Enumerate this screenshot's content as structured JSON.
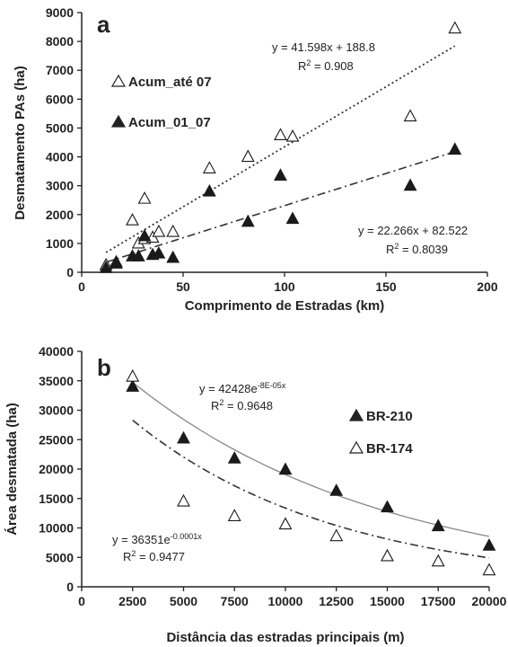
{
  "chart_data": [
    {
      "type": "scatter",
      "panel_label": "a",
      "xlabel": "Comprimento de Estradas (km)",
      "ylabel": "Desmatamento PAs (ha)",
      "xlim": [
        0,
        200
      ],
      "ylim": [
        0,
        9000
      ],
      "xticks": [
        0,
        50,
        100,
        150,
        200
      ],
      "yticks": [
        0,
        1000,
        2000,
        3000,
        4000,
        5000,
        6000,
        7000,
        8000,
        9000
      ],
      "grid": false,
      "legend_position": "left",
      "series": [
        {
          "name": "Acum_até 07",
          "marker": "open-triangle",
          "points": [
            [
              12,
              250
            ],
            [
              17,
              350
            ],
            [
              25,
              1800
            ],
            [
              28,
              1000
            ],
            [
              31,
              2550
            ],
            [
              31,
              1150
            ],
            [
              35,
              1200
            ],
            [
              38,
              1400
            ],
            [
              45,
              1400
            ],
            [
              63,
              3600
            ],
            [
              82,
              4000
            ],
            [
              98,
              4750
            ],
            [
              104,
              4700
            ],
            [
              162,
              5400
            ],
            [
              184,
              8450
            ]
          ],
          "trendline": {
            "kind": "linear",
            "slope": 41.598,
            "intercept": 188.8,
            "style": "dotted",
            "x_range": [
              12,
              184
            ]
          },
          "equation": "y = 41.598x + 188.8",
          "r2_prefix": "R",
          "r2_value": " = 0.908"
        },
        {
          "name": "Acum_01_07",
          "marker": "filled-triangle",
          "points": [
            [
              12,
              150
            ],
            [
              17,
              300
            ],
            [
              25,
              550
            ],
            [
              28,
              550
            ],
            [
              31,
              1250
            ],
            [
              35,
              600
            ],
            [
              38,
              650
            ],
            [
              45,
              500
            ],
            [
              63,
              2800
            ],
            [
              82,
              1750
            ],
            [
              98,
              3350
            ],
            [
              104,
              1850
            ],
            [
              162,
              3000
            ],
            [
              184,
              4250
            ]
          ],
          "trendline": {
            "kind": "linear",
            "slope": 22.266,
            "intercept": 82.522,
            "style": "dash-dot",
            "x_range": [
              12,
              184
            ]
          },
          "equation": "y = 22.266x + 82.522",
          "r2_prefix": "R",
          "r2_value": " = 0.8039"
        }
      ]
    },
    {
      "type": "scatter",
      "panel_label": "b",
      "xlabel": "Distância das estradas principais (m)",
      "ylabel": "Área desmatada (ha)",
      "xlim": [
        0,
        20000
      ],
      "ylim": [
        0,
        40000
      ],
      "xticks": [
        0,
        2500,
        5000,
        7500,
        10000,
        12500,
        15000,
        17500,
        20000
      ],
      "yticks": [
        0,
        5000,
        10000,
        15000,
        20000,
        25000,
        30000,
        35000,
        40000
      ],
      "grid": false,
      "legend_position": "right",
      "series": [
        {
          "name": "BR-210",
          "marker": "filled-triangle",
          "points": [
            [
              2500,
              34000
            ],
            [
              5000,
              25200
            ],
            [
              7500,
              21800
            ],
            [
              10000,
              19900
            ],
            [
              12500,
              16300
            ],
            [
              15000,
              13500
            ],
            [
              17500,
              10300
            ],
            [
              20000,
              7000
            ]
          ],
          "trendline": {
            "kind": "exponential",
            "a": 42428,
            "b": -8e-05,
            "style": "solid",
            "x_range": [
              2500,
              20000
            ]
          },
          "eq_base": "y = 42428e",
          "eq_exponent": "-8E-05x",
          "r2_prefix": "R",
          "r2_value": " = 0.9648"
        },
        {
          "name": "BR-174",
          "marker": "open-triangle",
          "points": [
            [
              2500,
              35700
            ],
            [
              5000,
              14500
            ],
            [
              7500,
              12000
            ],
            [
              10000,
              10600
            ],
            [
              12500,
              8600
            ],
            [
              15000,
              5200
            ],
            [
              17500,
              4300
            ],
            [
              20000,
              2800
            ]
          ],
          "trendline": {
            "kind": "exponential",
            "a": 36351,
            "b": -0.0001,
            "style": "dash-dot",
            "x_range": [
              2500,
              20000
            ]
          },
          "eq_base": "y = 36351e",
          "eq_exponent": "-0.0001x",
          "r2_prefix": "R",
          "r2_value": " = 0.9477"
        }
      ]
    }
  ]
}
